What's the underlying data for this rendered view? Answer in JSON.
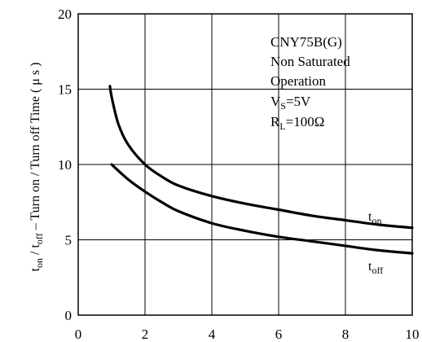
{
  "chart_data": {
    "type": "line",
    "title": "",
    "xlabel": "",
    "ylabel": {
      "main": "t",
      "sub1": "on",
      "sep": " / t",
      "sub2": "off",
      "rest": " – Turn on / Turn off Time ( μ s )"
    },
    "xlim": [
      0,
      10
    ],
    "ylim": [
      0,
      20
    ],
    "xticks": [
      "0",
      "2",
      "4",
      "6",
      "8",
      "10"
    ],
    "yticks": [
      "0",
      "5",
      "10",
      "15",
      "20"
    ],
    "grid": true,
    "annotation": {
      "line1": "CNY75B(G)",
      "line2": "Non Saturated",
      "line3": "Operation",
      "line4_main": "V",
      "line4_sub": "S",
      "line4_rest": "=5V",
      "line5_main": "R",
      "line5_sub": "L",
      "line5_rest": "=100Ω"
    },
    "series": [
      {
        "label_main": "t",
        "label_sub": "on",
        "x": [
          0.95,
          1.0,
          1.2,
          1.5,
          2.0,
          2.5,
          3.0,
          4.0,
          5.0,
          6.0,
          7.0,
          8.0,
          9.0,
          10.0
        ],
        "y": [
          15.2,
          14.5,
          12.7,
          11.3,
          10.0,
          9.2,
          8.6,
          7.9,
          7.4,
          7.0,
          6.6,
          6.3,
          6.0,
          5.8
        ]
      },
      {
        "label_main": "t",
        "label_sub": "off",
        "x": [
          1.0,
          1.5,
          2.0,
          2.5,
          3.0,
          4.0,
          5.0,
          6.0,
          7.0,
          8.0,
          9.0,
          10.0
        ],
        "y": [
          10.0,
          9.0,
          8.2,
          7.5,
          6.9,
          6.1,
          5.6,
          5.2,
          4.9,
          4.6,
          4.3,
          4.1
        ]
      }
    ]
  }
}
